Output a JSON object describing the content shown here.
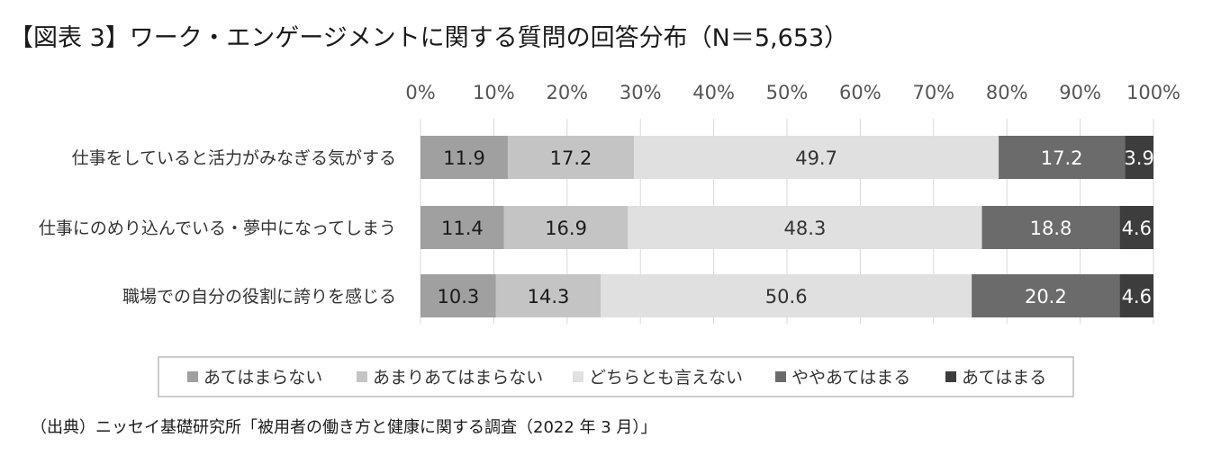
{
  "title": "【図表 3】ワーク・エンゲージメントに関する質問の回答分布（N＝5,653）",
  "source": "（出典）ニッセイ基礎研究所「被用者の働き方と健康に関する調査（2022 年 3 月）」",
  "chart_data": {
    "type": "bar",
    "orientation": "horizontal",
    "stacked": "percent",
    "categories": [
      "仕事をしていると活力がみなぎる気がする",
      "仕事にのめり込んでいる・夢中になってしまう",
      "職場での自分の役割に誇りを感じる"
    ],
    "series": [
      {
        "name": "あてはまらない",
        "color": "#a0a0a0",
        "label_color": "#1a1a1a",
        "values": [
          11.9,
          11.4,
          10.3
        ]
      },
      {
        "name": "あまりあてはまらない",
        "color": "#c4c4c4",
        "label_color": "#1a1a1a",
        "values": [
          17.2,
          16.9,
          14.3
        ]
      },
      {
        "name": "どちらとも言えない",
        "color": "#e0e0e0",
        "label_color": "#333333",
        "values": [
          49.7,
          48.3,
          50.6
        ]
      },
      {
        "name": "ややあてはまる",
        "color": "#6b6b6b",
        "label_color": "#ffffff",
        "values": [
          17.2,
          18.8,
          20.2
        ]
      },
      {
        "name": "あてはまる",
        "color": "#3d3d3d",
        "label_color": "#ffffff",
        "values": [
          3.9,
          4.6,
          4.6
        ]
      }
    ],
    "x_ticks": [
      "0%",
      "10%",
      "20%",
      "30%",
      "40%",
      "50%",
      "60%",
      "70%",
      "80%",
      "90%",
      "100%"
    ],
    "xlim": [
      0,
      100
    ],
    "grid": true,
    "axis_position": "top",
    "legend_position": "bottom"
  }
}
